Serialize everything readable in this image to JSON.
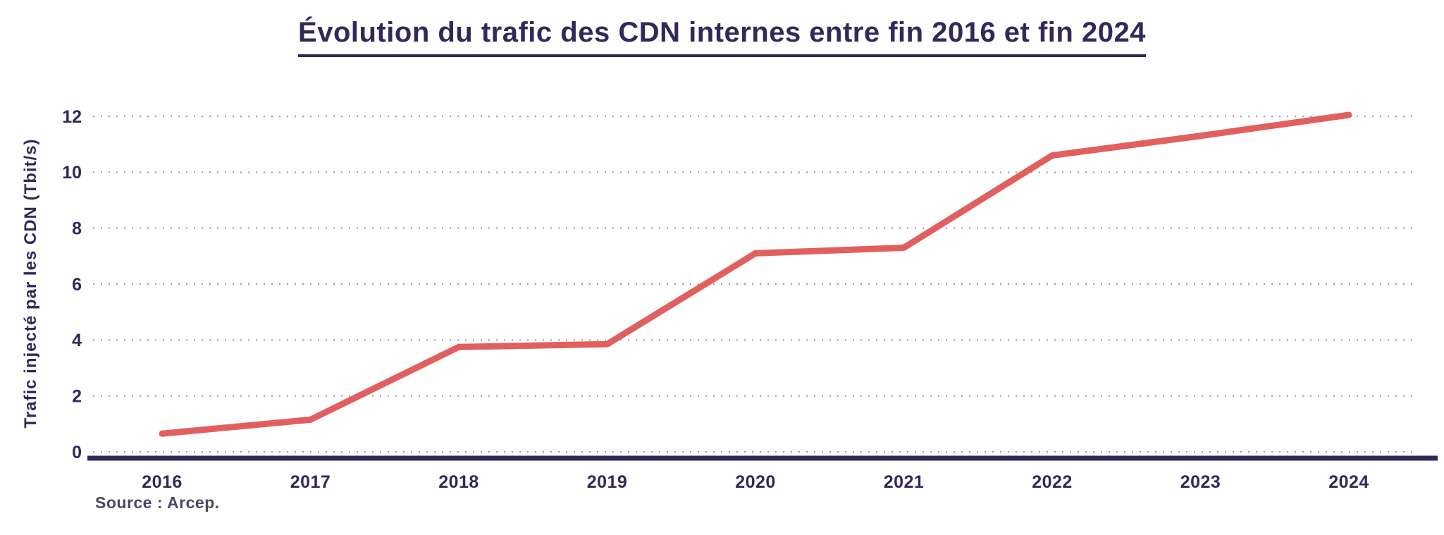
{
  "page": {
    "source": "Source : Arcep."
  },
  "chart_data": {
    "type": "line",
    "title": "Évolution du trafic des CDN internes entre fin 2016 et fin 2024",
    "xlabel": "",
    "ylabel": "Trafic injecté par les CDN (Tbit/s)",
    "x": [
      "2016",
      "2017",
      "2018",
      "2019",
      "2020",
      "2021",
      "2022",
      "2023",
      "2024"
    ],
    "values": [
      0.65,
      1.15,
      3.75,
      3.85,
      7.1,
      7.3,
      10.6,
      11.3,
      12.05
    ],
    "ylim": [
      0,
      12
    ],
    "yticks": [
      0,
      2,
      4,
      6,
      8,
      10,
      12
    ],
    "grid": "horizontal-dotted",
    "legend": "none",
    "line_color": "#e25f5f",
    "axis_color": "#2f2a5c",
    "text_color": "#2f2a5c",
    "grid_color": "#97969e"
  }
}
